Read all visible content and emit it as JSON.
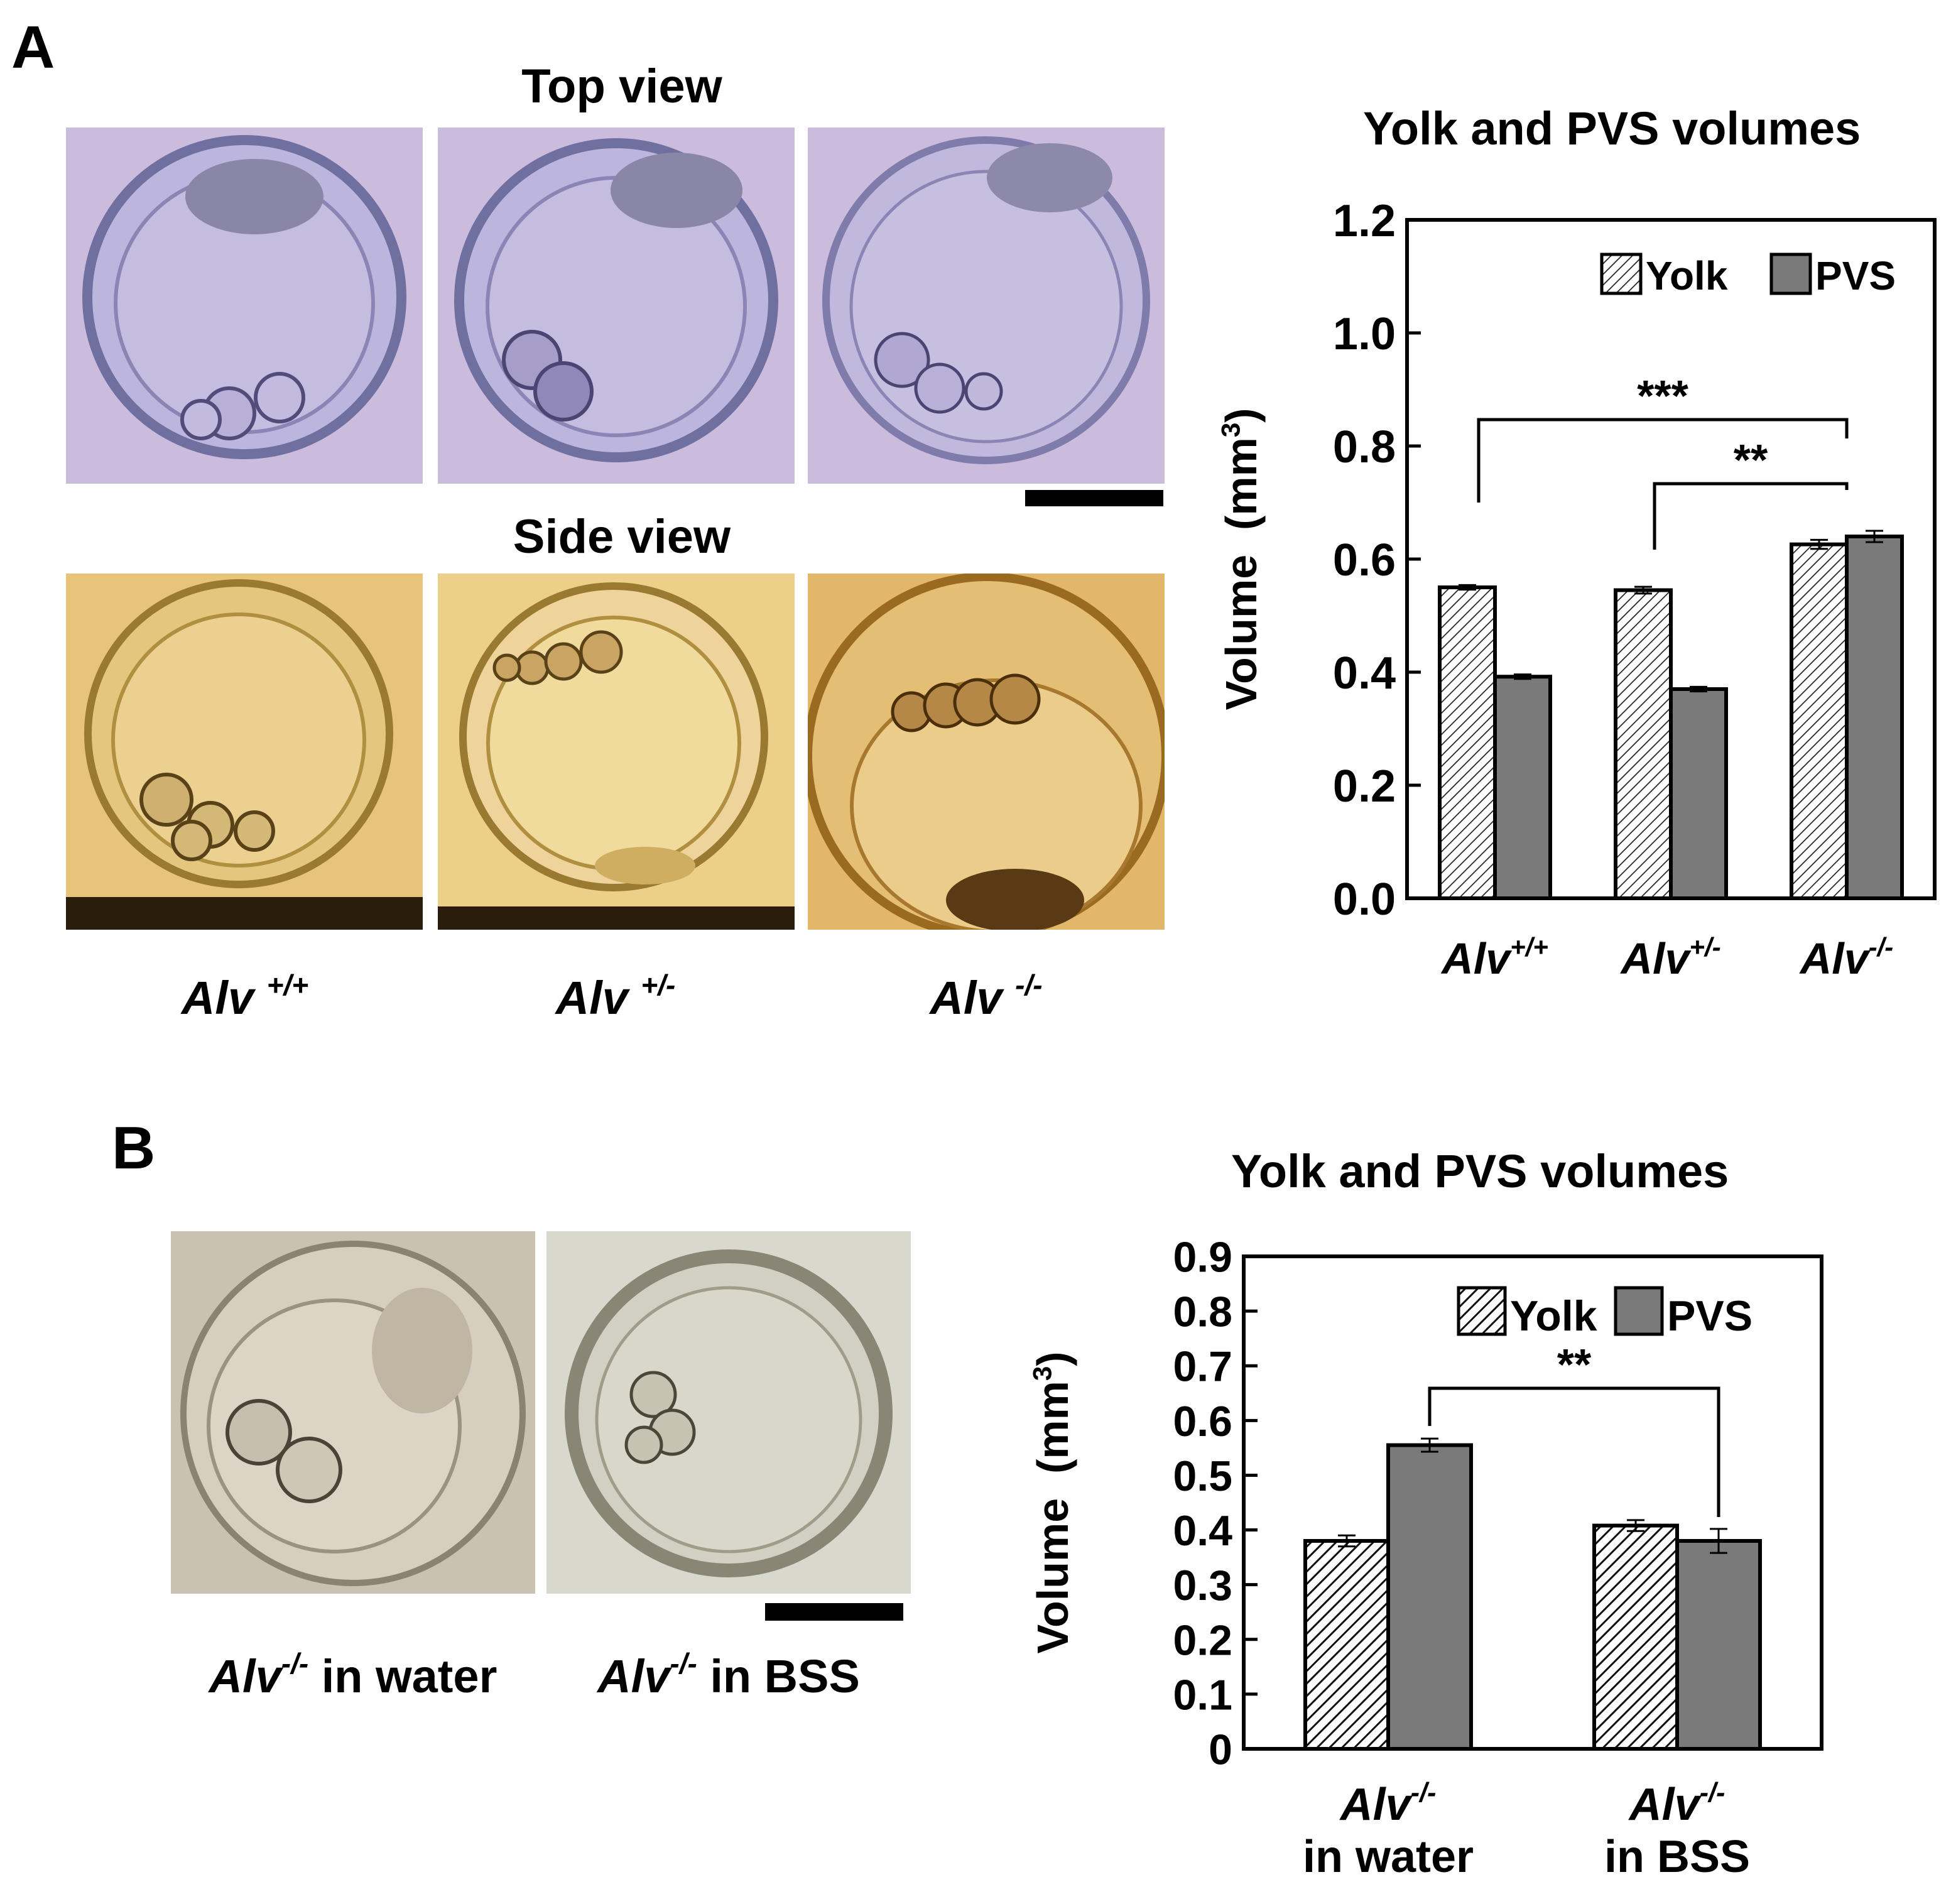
{
  "panel_a": {
    "letter": "A",
    "top_view": "Top view",
    "side_view": "Side view",
    "genotypes": [
      {
        "base": "Alv",
        "sup": "+/+"
      },
      {
        "base": "Alv",
        "sup": "+/-"
      },
      {
        "base": "Alv",
        "sup": "-/-"
      }
    ]
  },
  "panel_b": {
    "letter": "B",
    "captions": [
      {
        "base": "Alv",
        "sup": "-/-",
        "suffix": " in water"
      },
      {
        "base": "Alv",
        "sup": "-/-",
        "suffix": " in BSS"
      }
    ]
  },
  "colors": {
    "top_view_bg": "#cbbcde",
    "side_view_bg": "#e8c47a",
    "water_bg": "#c9c2b2",
    "bss_bg": "#d8d8cc",
    "pvs_fill": "#7a7a7a",
    "yolk_pattern": "hatched"
  },
  "chart_data": [
    {
      "type": "bar",
      "title": "Yolk and PVS volumes",
      "ylabel": "Volume (mm³)",
      "ylabel_main": "Volume",
      "ylabel_unit": "(mm",
      "ylabel_sup": "3",
      "ylabel_close": ")",
      "ylim": [
        0,
        1.2
      ],
      "yticks": [
        "0.0",
        "0.2",
        "0.4",
        "0.6",
        "0.8",
        "1.0",
        "1.2"
      ],
      "categories": [
        {
          "base": "Alv",
          "sup": "+/+"
        },
        {
          "base": "Alv",
          "sup": "+/-"
        },
        {
          "base": "Alv",
          "sup": "-/-"
        }
      ],
      "series": [
        {
          "name": "Yolk",
          "values": [
            0.55,
            0.545,
            0.626
          ],
          "errors": [
            0.004,
            0.006,
            0.008
          ]
        },
        {
          "name": "PVS",
          "values": [
            0.392,
            0.37,
            0.64
          ],
          "errors": [
            0.004,
            0.004,
            0.01
          ]
        }
      ],
      "significance": [
        {
          "from": 0,
          "to": 2,
          "label": "***"
        },
        {
          "from": 1,
          "to": 2,
          "label": "**"
        }
      ],
      "legend_position": "top-right"
    },
    {
      "type": "bar",
      "title": "Yolk and PVS volumes",
      "ylabel": "Volume (mm³)",
      "ylabel_main": "Volume",
      "ylabel_unit": "(mm",
      "ylabel_sup": "3",
      "ylabel_close": ")",
      "ylim": [
        0,
        0.9
      ],
      "yticks": [
        "0",
        "0.1",
        "0.2",
        "0.3",
        "0.4",
        "0.5",
        "0.6",
        "0.7",
        "0.8",
        "0.9"
      ],
      "categories": [
        {
          "base": "Alv",
          "sup": "-/-",
          "line2": "in water"
        },
        {
          "base": "Alv",
          "sup": "-/-",
          "line2": "in BSS"
        }
      ],
      "series": [
        {
          "name": "Yolk",
          "values": [
            0.38,
            0.408
          ],
          "errors": [
            0.01,
            0.01
          ]
        },
        {
          "name": "PVS",
          "values": [
            0.555,
            0.38
          ],
          "errors": [
            0.012,
            0.022
          ]
        }
      ],
      "significance": [
        {
          "from": 0,
          "to": 1,
          "label": "**"
        }
      ],
      "legend_position": "top-right"
    }
  ]
}
